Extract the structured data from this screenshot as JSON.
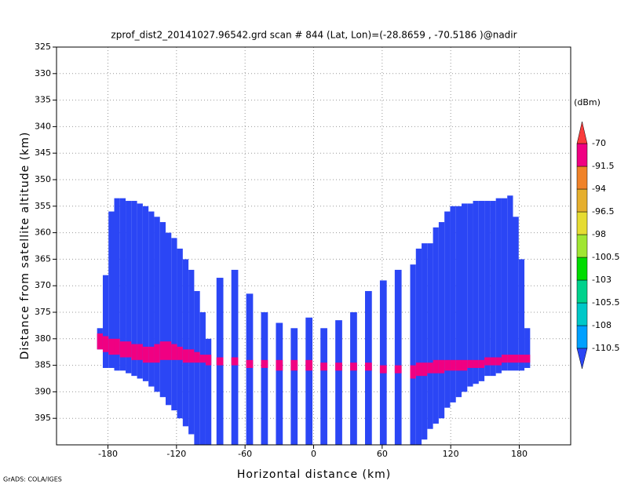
{
  "chart_data": {
    "type": "profile",
    "title": "zprof_dist2_20141027.96542.grd  scan # 844  (Lat, Lon)=(-28.8659 , -70.5186 )@nadir",
    "xlabel": "Horizontal distance (km)",
    "ylabel": "Distance from satellite altitude (km)",
    "credit": "GrADS: COLA/IGES",
    "xlim": [
      -225,
      225
    ],
    "ylim": [
      325,
      400
    ],
    "xticks": [
      -180,
      -120,
      -60,
      0,
      60,
      120,
      180
    ],
    "yticks": [
      325,
      330,
      335,
      340,
      345,
      350,
      355,
      360,
      365,
      370,
      375,
      380,
      385,
      390,
      395
    ],
    "grid": true,
    "x": [
      -187,
      -182,
      -177,
      -172,
      -167,
      -162,
      -157,
      -152,
      -147,
      -142,
      -137,
      -132,
      -127,
      -122,
      -117,
      -112,
      -107,
      -102,
      -97,
      -92,
      -82,
      -69,
      -56,
      -43,
      -30,
      -17,
      -4,
      9,
      22,
      35,
      48,
      61,
      74,
      87,
      92,
      97,
      102,
      107,
      112,
      117,
      122,
      127,
      132,
      137,
      142,
      147,
      152,
      157,
      162,
      167,
      172,
      177,
      182,
      187
    ],
    "widths": [
      5,
      5,
      5,
      5,
      5,
      5,
      5,
      5,
      5,
      5,
      5,
      5,
      5,
      5,
      5,
      5,
      5,
      5,
      5,
      5,
      6,
      6,
      6,
      6,
      6,
      6,
      6,
      6,
      6,
      6,
      6,
      6,
      6,
      5,
      5,
      5,
      5,
      5,
      5,
      5,
      5,
      5,
      5,
      5,
      5,
      5,
      5,
      5,
      5,
      5,
      5,
      5,
      5,
      5
    ],
    "echo_top": [
      378,
      368,
      356,
      353.5,
      353.5,
      354,
      354,
      354.5,
      355,
      356,
      357,
      358,
      360,
      361,
      363,
      365,
      367,
      371,
      375,
      380,
      368.5,
      367,
      371.5,
      375,
      377,
      378,
      376,
      378,
      376.5,
      375,
      371,
      369,
      367,
      366,
      363,
      362,
      362,
      359,
      358,
      356,
      355,
      355,
      354.5,
      354.5,
      354,
      354,
      354,
      354,
      353.5,
      353.5,
      353,
      357,
      365,
      378
    ],
    "echo_bottom": [
      382,
      385.5,
      385.5,
      386,
      386,
      386.5,
      387,
      387.5,
      388,
      389,
      390,
      391,
      392.5,
      393.5,
      395,
      396.5,
      398,
      400,
      400,
      400,
      400,
      400,
      400,
      400,
      400,
      400,
      400,
      400,
      400,
      400,
      400,
      400,
      400,
      400,
      400,
      399,
      397,
      396,
      395,
      393,
      392,
      391,
      390,
      389,
      388.5,
      388,
      387,
      387,
      386.5,
      386,
      386,
      386,
      386,
      385.5
    ],
    "surface_top": [
      379,
      379.5,
      380,
      380,
      380.5,
      380.5,
      381,
      381,
      381.5,
      381.5,
      381,
      380.5,
      380.5,
      381,
      381.5,
      382,
      382,
      382.5,
      383,
      383,
      383.5,
      383.5,
      384,
      384,
      384,
      384,
      384,
      384.5,
      384.5,
      384.5,
      384.5,
      385,
      385,
      385,
      384.5,
      384.5,
      384.5,
      384,
      384,
      384,
      384,
      384,
      384,
      384,
      384,
      384,
      383.5,
      383.5,
      383.5,
      383,
      383,
      383,
      383,
      383
    ],
    "surface_bottom": [
      382,
      382.5,
      383,
      383,
      383.5,
      383.5,
      384,
      384,
      384.5,
      384.5,
      384.5,
      384,
      384,
      384,
      384,
      384.5,
      384.5,
      384.5,
      384.5,
      385,
      385,
      385,
      385.5,
      385.5,
      386,
      386,
      386,
      386,
      386,
      386,
      386,
      386.5,
      386.5,
      387.5,
      387,
      387,
      386.5,
      386.5,
      386.5,
      386,
      386,
      386,
      386,
      385.5,
      385.5,
      385.5,
      385,
      385,
      385,
      384.5,
      384.5,
      384.5,
      384.5,
      384.5
    ],
    "colorbar": {
      "unit": "(dBm)",
      "levels": [
        -110.5,
        -108,
        -105.5,
        -103,
        -100.5,
        -98,
        -96.5,
        -94,
        -91.5,
        -70
      ],
      "colors": [
        "#2b46f5",
        "#00a0ff",
        "#00c8c8",
        "#00d28c",
        "#00dc00",
        "#a0e632",
        "#e6dc32",
        "#e6af2d",
        "#f08228",
        "#f00082",
        "#fa3c3c"
      ]
    }
  }
}
